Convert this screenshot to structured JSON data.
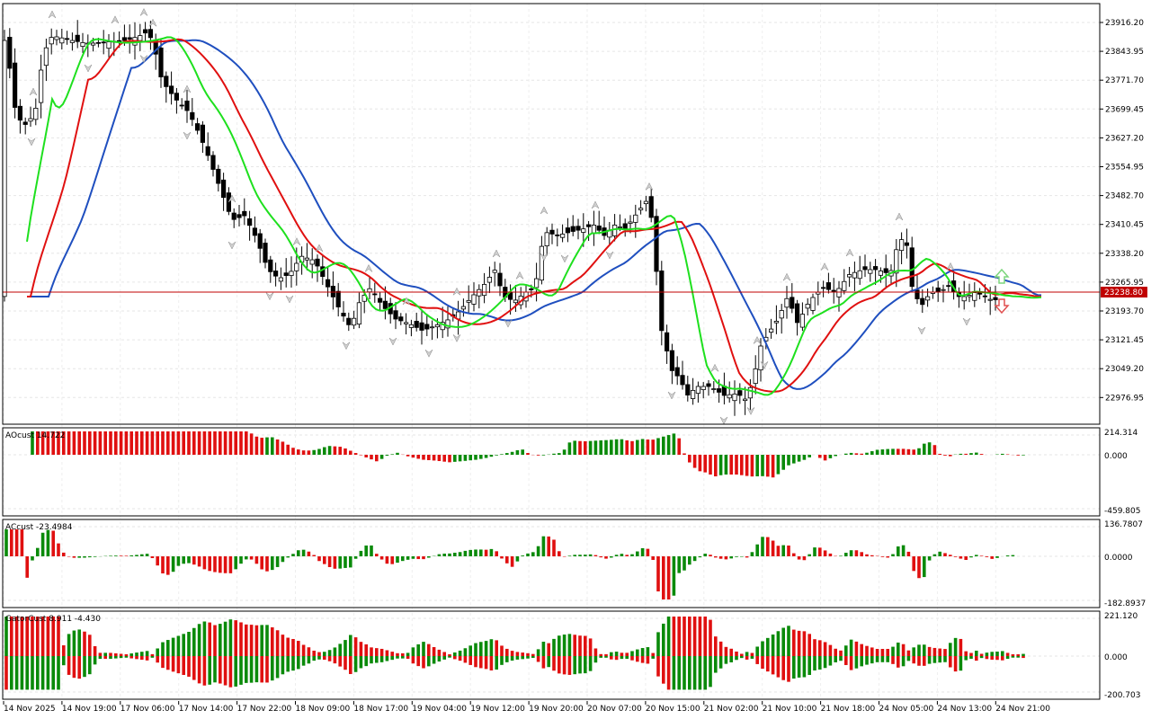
{
  "chart_data": [
    {
      "type": "candlestick",
      "price_axis_labels": [
        "23916.20",
        "23843.95",
        "23771.70",
        "23699.45",
        "23627.20",
        "23554.95",
        "23482.70",
        "23410.45",
        "23338.20",
        "23265.95",
        "23193.70",
        "23121.45",
        "23049.20",
        "22976.95"
      ],
      "ylim": [
        22930,
        23960
      ],
      "current_price": "23238.80",
      "indicators": [
        "Alligator Jaw",
        "Alligator Teeth",
        "Alligator Lips",
        "Fractals"
      ],
      "colors": {
        "jaw": "#1f4fbf",
        "teeth": "#e01010",
        "lips": "#1ee01e",
        "price_line": "#c00000",
        "bull_fill": "#ffffff",
        "bear_fill": "#000000",
        "up_arrow": "#7cd67c",
        "down_arrow": "#e05050"
      }
    },
    {
      "type": "histogram",
      "label": "AOcust 14.722",
      "axis_labels": [
        "214.314",
        "0.000",
        "-459.805"
      ],
      "ylim": [
        -459.805,
        214.314
      ],
      "colors": {
        "up": "#0a8a0a",
        "down": "#e01010"
      }
    },
    {
      "type": "histogram",
      "label": "ACcust -23.4984",
      "axis_labels": [
        "136.7807",
        "0.0000",
        "-182.8937"
      ],
      "ylim": [
        -182.8937,
        136.7807
      ],
      "colors": {
        "up": "#0a8a0a",
        "down": "#e01010"
      }
    },
    {
      "type": "histogram",
      "label": "GatorCust 8.911 -4.430",
      "axis_labels": [
        "221.120",
        "0.000",
        "-200.703"
      ],
      "ylim": [
        -200.703,
        221.12
      ],
      "colors": {
        "up": "#0a8a0a",
        "down": "#e01010"
      }
    }
  ],
  "time_axis": [
    "14 Nov 2025",
    "14 Nov 19:00",
    "17 Nov 06:00",
    "17 Nov 14:00",
    "17 Nov 22:00",
    "18 Nov 09:00",
    "18 Nov 17:00",
    "19 Nov 04:00",
    "19 Nov 12:00",
    "19 Nov 20:00",
    "20 Nov 07:00",
    "20 Nov 15:00",
    "21 Nov 02:00",
    "21 Nov 10:00",
    "21 Nov 18:00",
    "24 Nov 05:00",
    "24 Nov 13:00",
    "24 Nov 21:00"
  ]
}
